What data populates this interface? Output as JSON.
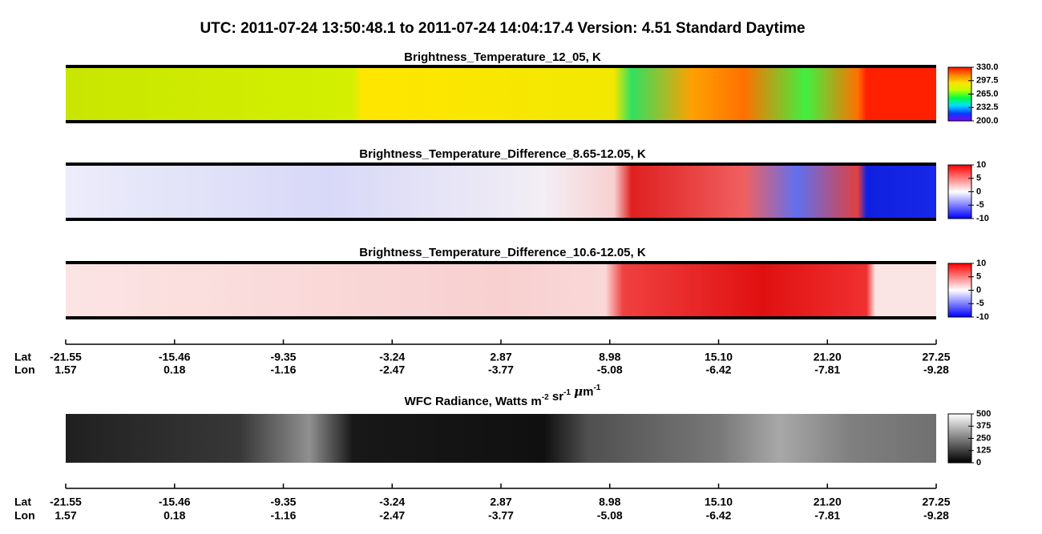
{
  "chart_data": {
    "type": "swath",
    "title": "UTC:  2011-07-24   13:50:48.1  to  2011-07-24   14:04:17.4    Version: 4.51  Standard Daytime",
    "panels": [
      {
        "title": [
          "Brightness_Temperature_12_05, K"
        ],
        "ylim": [
          200,
          330
        ],
        "yticks": [
          {
            "value": 200,
            "label": "200.0"
          },
          {
            "value": 232.5,
            "label": "232.5"
          },
          {
            "value": 265,
            "label": "265.0"
          },
          {
            "value": 297.5,
            "label": "297.5"
          },
          {
            "value": 330,
            "label": "330.0"
          }
        ],
        "colormap": [
          "#8000ff",
          "#0040ff",
          "#00e0ff",
          "#00ff40",
          "#c0ff00",
          "#ffe000",
          "#ff8000",
          "#ff1000"
        ]
      },
      {
        "title": [
          "Brightness_Temperature_Difference_8.65-12.05, K"
        ],
        "ylim": [
          -10,
          10
        ],
        "yticks": [
          -10,
          -5,
          0,
          5,
          10
        ],
        "colormap": [
          "#0000ff",
          "#ffffff",
          "#ff0000"
        ]
      },
      {
        "title": [
          "Brightness_Temperature_Difference_10.6-12.05, K"
        ],
        "ylim": [
          -10,
          10
        ],
        "yticks": [
          -10,
          -5,
          0,
          5,
          10
        ],
        "colormap": [
          "#0000ff",
          "#ffffff",
          "#ff0000"
        ]
      },
      {
        "title": [
          "WFC Radiance, Watts m",
          " sr",
          " ",
          "m"
        ],
        "title_sup": [
          "-2",
          "-1",
          "",
          "-1"
        ],
        "title_greek": "μ",
        "ylim": [
          0,
          500
        ],
        "yticks": [
          0,
          125,
          250,
          375,
          500
        ],
        "colormap": [
          "#000000",
          "#ffffff"
        ]
      }
    ],
    "axis_labels": [
      "Lat",
      "Lon"
    ],
    "lat": [
      -21.55,
      -15.46,
      -9.35,
      -3.24,
      2.87,
      8.98,
      {
        "value": 15.1,
        "label": "15.10"
      },
      {
        "value": 21.2,
        "label": "21.20"
      },
      27.25
    ],
    "lon": [
      1.57,
      0.18,
      -1.16,
      -2.47,
      -3.77,
      -5.08,
      -6.42,
      -7.81,
      -9.28
    ]
  }
}
